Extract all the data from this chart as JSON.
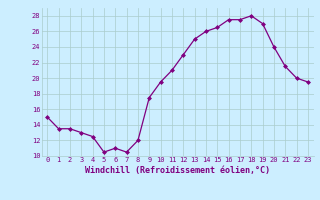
{
  "x": [
    0,
    1,
    2,
    3,
    4,
    5,
    6,
    7,
    8,
    9,
    10,
    11,
    12,
    13,
    14,
    15,
    16,
    17,
    18,
    19,
    20,
    21,
    22,
    23
  ],
  "y": [
    15,
    13.5,
    13.5,
    13,
    12.5,
    10.5,
    11,
    10.5,
    12,
    17.5,
    19.5,
    21,
    23,
    25,
    26,
    26.5,
    27.5,
    27.5,
    28,
    27,
    24,
    21.5,
    20,
    19.5
  ],
  "line_color": "#800080",
  "marker": "D",
  "marker_size": 2,
  "bg_color": "#cceeff",
  "grid_color": "#aacccc",
  "xlabel": "Windchill (Refroidissement éolien,°C)",
  "xlabel_color": "#800080",
  "tick_color": "#800080",
  "ylim": [
    10,
    29
  ],
  "yticks": [
    10,
    12,
    14,
    16,
    18,
    20,
    22,
    24,
    26,
    28
  ],
  "xlim": [
    -0.5,
    23.5
  ],
  "xticks": [
    0,
    1,
    2,
    3,
    4,
    5,
    6,
    7,
    8,
    9,
    10,
    11,
    12,
    13,
    14,
    15,
    16,
    17,
    18,
    19,
    20,
    21,
    22,
    23
  ],
  "tick_fontsize": 5,
  "xlabel_fontsize": 6
}
